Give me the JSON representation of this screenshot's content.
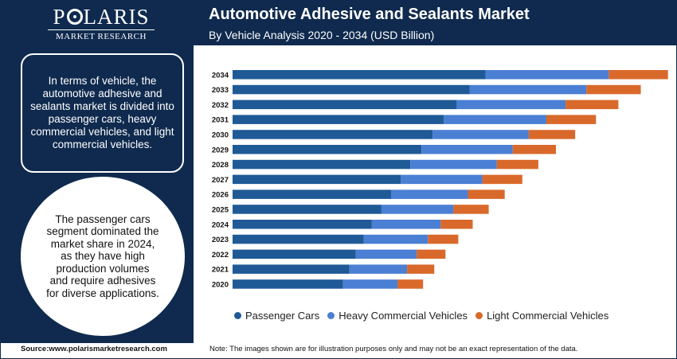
{
  "brand": {
    "name_left": "P",
    "name_right": "LARIS",
    "tagline": "MARKET RESEARCH"
  },
  "header": {
    "title": "Automotive Adhesive and Sealants Market",
    "subtitle": "By Vehicle Analysis 2020 - 2034 (USD Billion)"
  },
  "info": {
    "box1": "In terms of vehicle, the automotive adhesive and sealants market is divided into passenger cars, heavy commercial vehicles, and light commercial vehicles.",
    "box2": "The passenger cars segment dominated the market share in 2024, as they have high production volumes and require adhesives for diverse applications."
  },
  "footer": {
    "source": "Source:www.polarismarketresearch.com",
    "note": "Note: The images shown are for illustration purposes only and may not be an exact representation of the data."
  },
  "colors": {
    "navy": "#0f2a4e",
    "passenger": "#1f5a96",
    "heavy": "#4a7fd4",
    "light": "#d9692b"
  },
  "chart_data": {
    "type": "bar",
    "orientation": "horizontal",
    "stacked": true,
    "categories": [
      "2034",
      "2033",
      "2032",
      "2031",
      "2030",
      "2029",
      "2028",
      "2027",
      "2026",
      "2025",
      "2024",
      "2023",
      "2022",
      "2021",
      "2020"
    ],
    "series": [
      {
        "name": "Passenger Cars",
        "color": "#1f5a96",
        "values": [
          15.8,
          14.8,
          14.0,
          13.2,
          12.5,
          11.8,
          11.1,
          10.5,
          9.9,
          9.3,
          8.7,
          8.2,
          7.7,
          7.3,
          6.9
        ]
      },
      {
        "name": "Heavy Commercial Vehicles",
        "color": "#4a7fd4",
        "values": [
          7.7,
          7.3,
          6.8,
          6.4,
          6.0,
          5.7,
          5.4,
          5.1,
          4.8,
          4.5,
          4.3,
          4.0,
          3.8,
          3.6,
          3.4
        ]
      },
      {
        "name": "Light Commercial Vehicles",
        "color": "#d9692b",
        "values": [
          3.7,
          3.4,
          3.3,
          3.1,
          2.9,
          2.7,
          2.6,
          2.5,
          2.3,
          2.2,
          2.0,
          1.9,
          1.8,
          1.7,
          1.6
        ]
      }
    ],
    "legend": "bottom"
  }
}
